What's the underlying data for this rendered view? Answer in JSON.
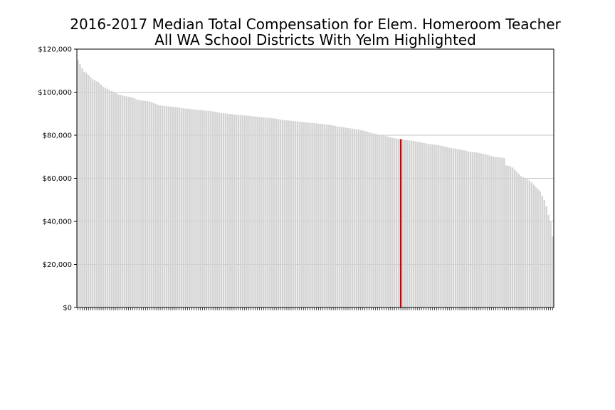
{
  "chart_data": {
    "type": "bar",
    "title": "2016-2017 Median Total Compensation for Elem. Homeroom Teacher",
    "subtitle": "All WA School Districts With Yelm Highlighted",
    "xlabel": "",
    "ylabel": "",
    "ylim": [
      0,
      120000
    ],
    "yticks": [
      0,
      20000,
      40000,
      60000,
      80000,
      100000,
      120000
    ],
    "ytick_labels": [
      "$0",
      "$20,000",
      "$40,000",
      "$60,000",
      "$80,000",
      "$100,000",
      "$120,000"
    ],
    "grid": "horizontal",
    "highlight_index": 153,
    "colors": {
      "bar": "#d3d3d3",
      "highlight": "#cc0000",
      "grid": "#b0b0b0"
    },
    "values": [
      115000,
      113000,
      111000,
      109500,
      109000,
      108000,
      107000,
      106000,
      105500,
      105000,
      104500,
      103500,
      102500,
      102000,
      101500,
      101000,
      100500,
      100000,
      99500,
      99000,
      98800,
      98500,
      98300,
      98100,
      97900,
      97700,
      97500,
      97000,
      96600,
      96300,
      96200,
      96100,
      96000,
      95800,
      95600,
      95400,
      95000,
      94500,
      94000,
      93800,
      93700,
      93600,
      93500,
      93400,
      93300,
      93200,
      93100,
      93000,
      92900,
      92700,
      92500,
      92400,
      92300,
      92200,
      92100,
      92000,
      91900,
      91800,
      91700,
      91600,
      91500,
      91400,
      91300,
      91200,
      91100,
      90900,
      90700,
      90500,
      90300,
      90200,
      90100,
      90000,
      89900,
      89800,
      89700,
      89600,
      89500,
      89400,
      89300,
      89200,
      89100,
      89000,
      88900,
      88800,
      88700,
      88600,
      88500,
      88400,
      88300,
      88200,
      88100,
      88000,
      87900,
      87800,
      87700,
      87500,
      87300,
      87100,
      87000,
      86900,
      86800,
      86700,
      86600,
      86500,
      86400,
      86300,
      86200,
      86100,
      86000,
      85900,
      85800,
      85700,
      85600,
      85500,
      85400,
      85300,
      85200,
      85100,
      85000,
      84900,
      84700,
      84500,
      84300,
      84100,
      84000,
      83900,
      83700,
      83500,
      83300,
      83200,
      83100,
      83000,
      82800,
      82600,
      82400,
      82200,
      82000,
      81700,
      81400,
      81100,
      80800,
      80600,
      80400,
      80200,
      80000,
      79800,
      79600,
      79400,
      79000,
      78800,
      78600,
      78400,
      78300,
      78200,
      78000,
      77800,
      77700,
      77600,
      77500,
      77400,
      77200,
      77000,
      76800,
      76600,
      76400,
      76200,
      76000,
      75900,
      75800,
      75600,
      75500,
      75400,
      75200,
      75000,
      74700,
      74400,
      74200,
      74000,
      73900,
      73800,
      73600,
      73400,
      73200,
      73000,
      72800,
      72500,
      72300,
      72200,
      72100,
      72000,
      71800,
      71600,
      71400,
      71200,
      70900,
      70600,
      70300,
      70000,
      69900,
      69800,
      69700,
      69600,
      69400,
      66000,
      65900,
      65500,
      65000,
      64000,
      63000,
      62000,
      61000,
      60500,
      60000,
      59500,
      59000,
      58000,
      57000,
      56000,
      55000,
      54000,
      52000,
      50000,
      47000,
      43000,
      40000,
      33000
    ]
  }
}
